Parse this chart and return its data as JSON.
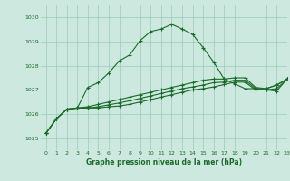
{
  "title": "Graphe pression niveau de la mer (hPa)",
  "background_color": "#cce8df",
  "grid_color": "#99ccbb",
  "line_color": "#1a6b2a",
  "xlim": [
    -0.5,
    23
  ],
  "ylim": [
    1024.5,
    1030.5
  ],
  "yticks": [
    1025,
    1026,
    1027,
    1028,
    1029,
    1030
  ],
  "xticks": [
    0,
    1,
    2,
    3,
    4,
    5,
    6,
    7,
    8,
    9,
    10,
    11,
    12,
    13,
    14,
    15,
    16,
    17,
    18,
    19,
    20,
    21,
    22,
    23
  ],
  "series1": {
    "x": [
      0,
      1,
      2,
      3,
      4,
      5,
      6,
      7,
      8,
      9,
      10,
      11,
      12,
      13,
      14,
      15,
      16,
      17,
      18,
      19,
      20,
      21,
      22,
      23
    ],
    "y": [
      1025.2,
      1025.8,
      1026.2,
      1026.25,
      1027.1,
      1027.3,
      1027.7,
      1028.2,
      1028.45,
      1029.05,
      1029.42,
      1029.52,
      1029.72,
      1029.52,
      1029.3,
      1028.75,
      1028.15,
      1027.45,
      1027.25,
      1027.05,
      1027.05,
      1027.05,
      1027.2,
      1027.45
    ]
  },
  "series2": {
    "x": [
      0,
      1,
      2,
      3,
      4,
      5,
      6,
      7,
      8,
      9,
      10,
      11,
      12,
      13,
      14,
      15,
      16,
      17,
      18,
      19,
      20,
      21,
      22,
      23
    ],
    "y": [
      1025.2,
      1025.8,
      1026.2,
      1026.25,
      1026.3,
      1026.4,
      1026.5,
      1026.6,
      1026.7,
      1026.8,
      1026.9,
      1027.0,
      1027.1,
      1027.2,
      1027.3,
      1027.4,
      1027.45,
      1027.45,
      1027.5,
      1027.5,
      1027.1,
      1027.05,
      1027.2,
      1027.45
    ]
  },
  "series3": {
    "x": [
      0,
      1,
      2,
      3,
      4,
      5,
      6,
      7,
      8,
      9,
      10,
      11,
      12,
      13,
      14,
      15,
      16,
      17,
      18,
      19,
      20,
      21,
      22,
      23
    ],
    "y": [
      1025.2,
      1025.8,
      1026.2,
      1026.25,
      1026.25,
      1026.3,
      1026.38,
      1026.46,
      1026.55,
      1026.65,
      1026.75,
      1026.85,
      1026.95,
      1027.05,
      1027.12,
      1027.2,
      1027.3,
      1027.32,
      1027.4,
      1027.4,
      1027.05,
      1027.0,
      1027.05,
      1027.45
    ]
  },
  "series4": {
    "x": [
      0,
      1,
      2,
      3,
      4,
      5,
      6,
      7,
      8,
      9,
      10,
      11,
      12,
      13,
      14,
      15,
      16,
      17,
      18,
      19,
      20,
      21,
      22,
      23
    ],
    "y": [
      1025.2,
      1025.8,
      1026.2,
      1026.25,
      1026.25,
      1026.25,
      1026.3,
      1026.33,
      1026.4,
      1026.5,
      1026.6,
      1026.7,
      1026.8,
      1026.9,
      1027.0,
      1027.05,
      1027.12,
      1027.22,
      1027.32,
      1027.32,
      1027.0,
      1027.0,
      1026.95,
      1027.45
    ]
  }
}
